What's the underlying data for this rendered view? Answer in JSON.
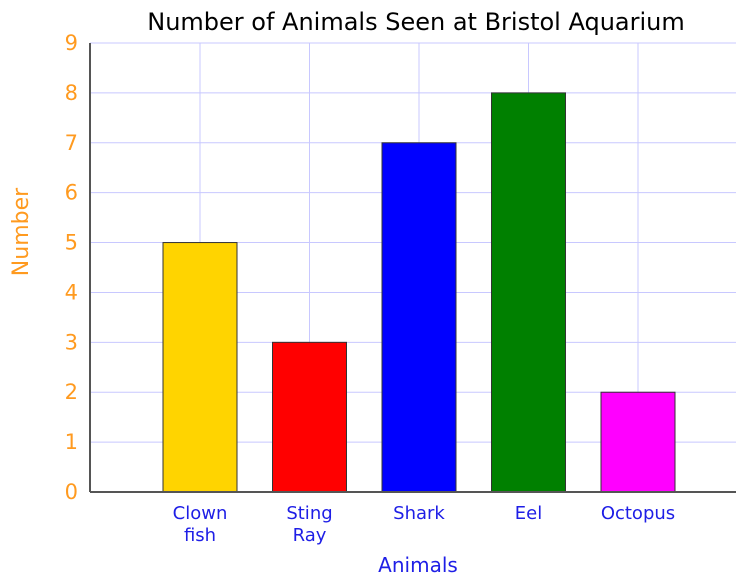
{
  "chart_data": {
    "type": "bar",
    "title": "Number of Animals Seen at Bristol Aquarium",
    "xlabel": "Animals",
    "ylabel": "Number",
    "categories": [
      "Clown fish",
      "Sting Ray",
      "Shark",
      "Eel",
      "Octopus"
    ],
    "category_lines": [
      [
        "Clown",
        "fish"
      ],
      [
        "Sting",
        "Ray"
      ],
      [
        "Shark"
      ],
      [
        "Eel"
      ],
      [
        "Octopus"
      ]
    ],
    "values": [
      5,
      3,
      7,
      8,
      2
    ],
    "colors": [
      "#ffd400",
      "#ff0000",
      "#0000ff",
      "#008000",
      "#ff00ff"
    ],
    "ylim": [
      0,
      9
    ],
    "yticks": [
      0,
      1,
      2,
      3,
      4,
      5,
      6,
      7,
      8,
      9
    ],
    "grid": true,
    "legend": "none"
  },
  "colors": {
    "title": "#000000",
    "y_axis_text": "#ff9a1f",
    "x_axis_text": "#1e1ee6",
    "gridline": "#c8c8ff",
    "axis": "#555555"
  }
}
